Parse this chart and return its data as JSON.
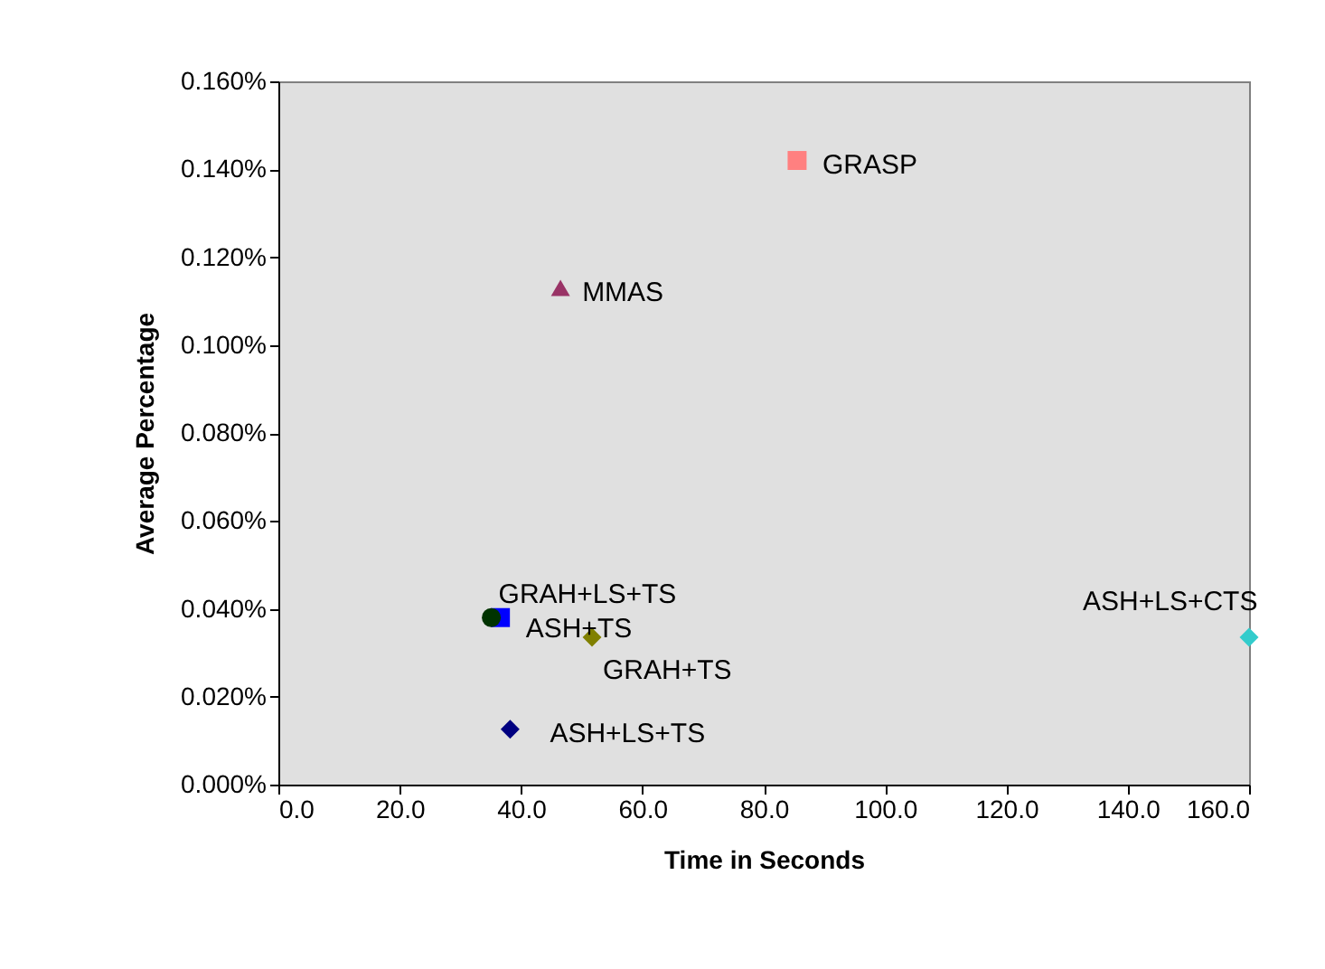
{
  "chart_data": {
    "type": "scatter",
    "xlabel": "Time in Seconds",
    "ylabel": "Average Percentage",
    "xlim": [
      0,
      160
    ],
    "ylim": [
      0,
      0.16
    ],
    "xticks": [
      {
        "value": 0,
        "label": "0.0"
      },
      {
        "value": 20,
        "label": "20.0"
      },
      {
        "value": 40,
        "label": "40.0"
      },
      {
        "value": 60,
        "label": "60.0"
      },
      {
        "value": 80,
        "label": "80.0"
      },
      {
        "value": 100,
        "label": "100.0"
      },
      {
        "value": 120,
        "label": "120.0"
      },
      {
        "value": 140,
        "label": "140.0"
      },
      {
        "value": 160,
        "label": "160.0"
      }
    ],
    "yticks": [
      {
        "value": 0,
        "label": "0.000%"
      },
      {
        "value": 0.02,
        "label": "0.020%"
      },
      {
        "value": 0.04,
        "label": "0.040%"
      },
      {
        "value": 0.06,
        "label": "0.060%"
      },
      {
        "value": 0.08,
        "label": "0.080%"
      },
      {
        "value": 0.1,
        "label": "0.100%"
      },
      {
        "value": 0.12,
        "label": "0.120%"
      },
      {
        "value": 0.14,
        "label": "0.140%"
      },
      {
        "value": 0.16,
        "label": "0.160%"
      }
    ],
    "grid": false,
    "legend": false,
    "series": [
      {
        "name": "GRASP",
        "color": "#ff8080",
        "marker": "square",
        "x": [
          85.5
        ],
        "values": [
          0.142
        ]
      },
      {
        "name": "MMAS",
        "color": "#993366",
        "marker": "triangle",
        "x": [
          46.5
        ],
        "values": [
          0.113
        ]
      },
      {
        "name": "GRAH+LS+TS",
        "color": "#003300",
        "marker": "circle",
        "x": [
          35.1
        ],
        "values": [
          0.038
        ]
      },
      {
        "name": "ASH+TS",
        "color": "#0000ff",
        "marker": "square",
        "x": [
          36.6
        ],
        "values": [
          0.038
        ]
      },
      {
        "name": "GRAH+TS",
        "color": "#808000",
        "marker": "diamond",
        "x": [
          51.7
        ],
        "values": [
          0.0335
        ]
      },
      {
        "name": "ASH+LS+TS",
        "color": "#000080",
        "marker": "diamond",
        "x": [
          38.2
        ],
        "values": [
          0.0126
        ]
      },
      {
        "name": "ASH+LS+CTS",
        "color": "#33cccc",
        "marker": "diamond",
        "x": [
          160
        ],
        "values": [
          0.0335
        ]
      }
    ]
  }
}
